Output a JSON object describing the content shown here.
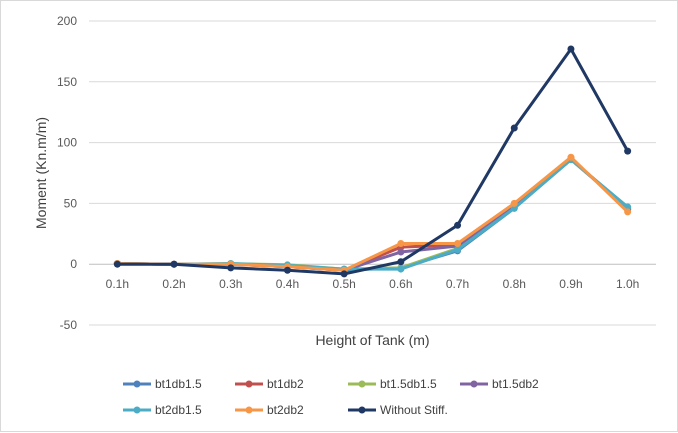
{
  "chart_data": {
    "type": "line",
    "title": "",
    "xlabel": "Height of Tank (m)",
    "ylabel": "Moment (Kn.m/m)",
    "categories": [
      "0.1h",
      "0.2h",
      "0.3h",
      "0.4h",
      "0.5h",
      "0.6h",
      "0.7h",
      "0.8h",
      "0.9h",
      "1.0h"
    ],
    "ylim": [
      -50,
      200
    ],
    "yticks": [
      "200",
      "150",
      "100",
      "50",
      "0",
      "-50"
    ],
    "grid": true,
    "legend_position": "bottom",
    "series": [
      {
        "name": "bt1db1.5",
        "color": "#4f81bd",
        "values": [
          0.5,
          0,
          0.2,
          -1.5,
          -5,
          -3,
          11,
          46,
          86,
          46
        ]
      },
      {
        "name": "bt1db2",
        "color": "#c0504d",
        "values": [
          0.5,
          0,
          0,
          -2,
          -5,
          14,
          16,
          48,
          87,
          45
        ]
      },
      {
        "name": "bt1.5db1.5",
        "color": "#9bbb59",
        "values": [
          0.5,
          0,
          0.5,
          -0.5,
          -4,
          -3,
          13,
          47,
          86,
          47
        ]
      },
      {
        "name": "bt1.5db2",
        "color": "#8064a2",
        "values": [
          0.5,
          0,
          0,
          -2,
          -5,
          10,
          15,
          48,
          87,
          45
        ]
      },
      {
        "name": "bt2db1.5",
        "color": "#4bacc6",
        "values": [
          0.5,
          0,
          0.5,
          -1,
          -4,
          -4,
          12,
          46,
          86,
          47
        ]
      },
      {
        "name": "bt2db2",
        "color": "#f79646",
        "values": [
          0.5,
          0,
          0,
          -2,
          -5,
          17,
          17,
          50,
          88,
          43
        ]
      },
      {
        "name": "Without Stiff.",
        "color": "#1f3864",
        "values": [
          0,
          0,
          -3,
          -5,
          -8,
          2,
          32,
          112,
          177,
          93
        ]
      }
    ]
  }
}
